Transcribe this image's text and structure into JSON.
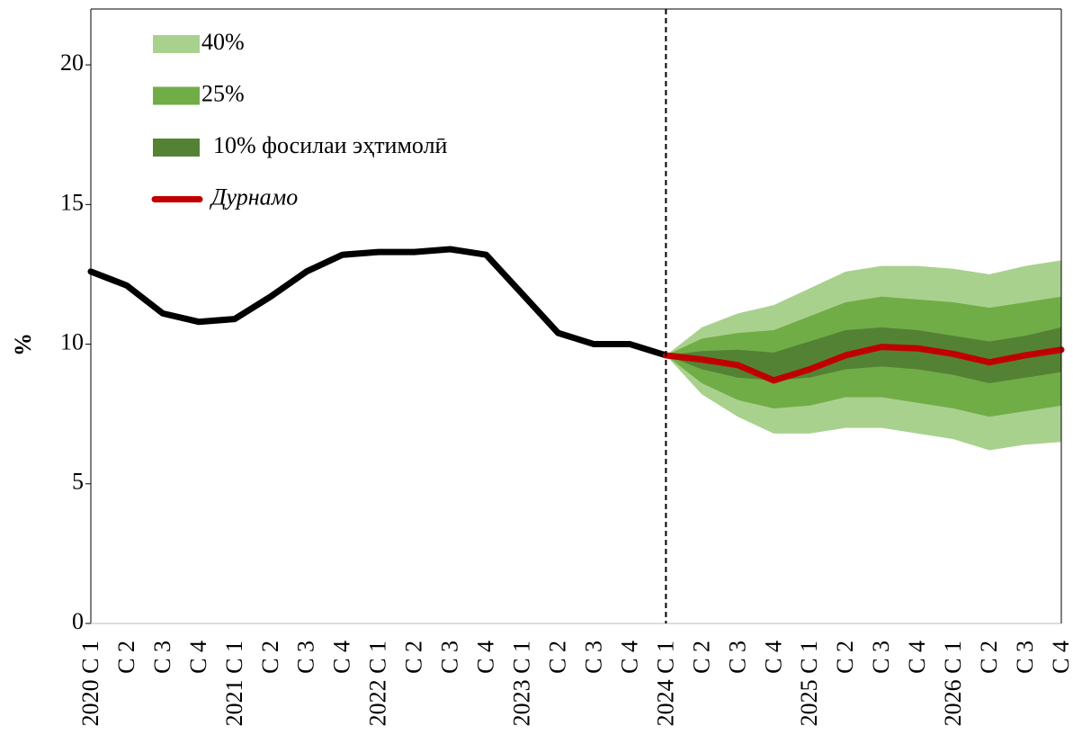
{
  "chart_data": {
    "type": "fan",
    "y_label": "%",
    "categories": [
      "2020 C 1",
      "C 2",
      "C 3",
      "C 4",
      "2021 C 1",
      "C 2",
      "C 3",
      "C 4",
      "2022 C 1",
      "C 2",
      "C 3",
      "C 4",
      "2023 C 1",
      "C 2",
      "C 3",
      "C 4",
      "2024 C 1",
      "C 2",
      "C 3",
      "C 4",
      "2025 C 1",
      "C 2",
      "C 3",
      "C 4",
      "2026 C 1",
      "C 2",
      "C 3",
      "C 4"
    ],
    "ylim": [
      0,
      22
    ],
    "yticks": [
      0,
      5,
      10,
      15,
      20
    ],
    "vline_at": "2024 C 1",
    "bands": [
      {
        "name": "40%",
        "color": "#a9d18e",
        "upper": [
          null,
          null,
          null,
          null,
          null,
          null,
          null,
          null,
          null,
          null,
          null,
          null,
          null,
          null,
          null,
          null,
          9.6,
          10.6,
          11.1,
          11.4,
          12.0,
          12.6,
          12.8,
          12.8,
          12.7,
          12.5,
          12.8,
          13.0
        ],
        "lower": [
          null,
          null,
          null,
          null,
          null,
          null,
          null,
          null,
          null,
          null,
          null,
          null,
          null,
          null,
          null,
          null,
          9.6,
          8.2,
          7.4,
          6.8,
          6.8,
          7.0,
          7.0,
          6.8,
          6.6,
          6.2,
          6.4,
          6.5
        ]
      },
      {
        "name": "25%",
        "color": "#70ad47",
        "upper": [
          null,
          null,
          null,
          null,
          null,
          null,
          null,
          null,
          null,
          null,
          null,
          null,
          null,
          null,
          null,
          null,
          9.6,
          10.2,
          10.4,
          10.5,
          11.0,
          11.5,
          11.7,
          11.6,
          11.5,
          11.3,
          11.5,
          11.7
        ],
        "lower": [
          null,
          null,
          null,
          null,
          null,
          null,
          null,
          null,
          null,
          null,
          null,
          null,
          null,
          null,
          null,
          null,
          9.6,
          8.6,
          8.0,
          7.7,
          7.8,
          8.1,
          8.1,
          7.9,
          7.7,
          7.4,
          7.6,
          7.8
        ]
      },
      {
        "name": "10% фосилаи эҳтимолӣ",
        "color": "#548235",
        "upper": [
          null,
          null,
          null,
          null,
          null,
          null,
          null,
          null,
          null,
          null,
          null,
          null,
          null,
          null,
          null,
          null,
          9.6,
          9.75,
          9.8,
          9.7,
          10.1,
          10.5,
          10.6,
          10.5,
          10.3,
          10.1,
          10.3,
          10.6
        ],
        "lower": [
          null,
          null,
          null,
          null,
          null,
          null,
          null,
          null,
          null,
          null,
          null,
          null,
          null,
          null,
          null,
          null,
          9.6,
          9.1,
          8.8,
          8.7,
          8.8,
          9.1,
          9.2,
          9.1,
          8.9,
          8.6,
          8.8,
          9.0
        ]
      }
    ],
    "series": [
      {
        "color": "#000000",
        "values": [
          12.6,
          12.1,
          11.1,
          10.8,
          10.9,
          11.7,
          12.6,
          13.2,
          13.3,
          13.3,
          13.4,
          13.2,
          11.8,
          10.4,
          10.0,
          10.0,
          9.6,
          null,
          null,
          null,
          null,
          null,
          null,
          null,
          null,
          null,
          null,
          null
        ]
      },
      {
        "name": "Дурнамо",
        "color": "#c00000",
        "values": [
          null,
          null,
          null,
          null,
          null,
          null,
          null,
          null,
          null,
          null,
          null,
          null,
          null,
          null,
          null,
          null,
          9.6,
          9.45,
          9.25,
          8.7,
          9.1,
          9.6,
          9.9,
          9.85,
          9.65,
          9.35,
          9.6,
          9.8
        ]
      }
    ]
  }
}
